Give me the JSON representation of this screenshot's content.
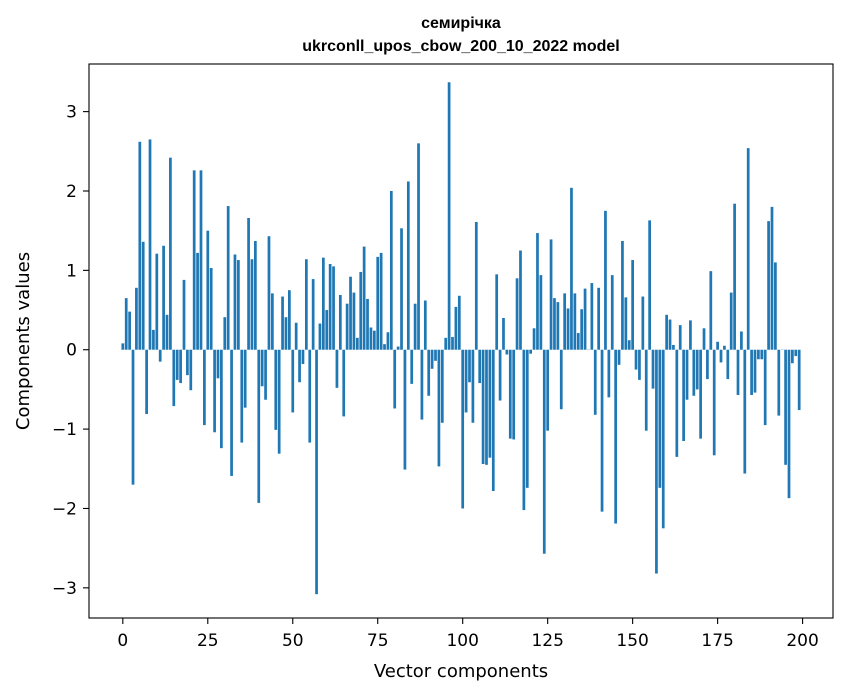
{
  "chart_data": {
    "type": "bar",
    "title": "семирічка",
    "subtitle": "ukrconll_upos_cbow_200_10_2022 model",
    "xlabel": "Vector components",
    "ylabel": "Components values",
    "xlim": [
      -9.95,
      208.95
    ],
    "ylim": [
      -3.38,
      3.6
    ],
    "xticks": [
      0,
      25,
      50,
      75,
      100,
      125,
      150,
      175,
      200
    ],
    "yticks": [
      -3,
      -2,
      -1,
      0,
      1,
      2,
      3
    ],
    "xtick_labels": [
      "0",
      "25",
      "50",
      "75",
      "100",
      "125",
      "150",
      "175",
      "200"
    ],
    "ytick_labels": [
      "−3",
      "−2",
      "−1",
      "0",
      "1",
      "2",
      "3"
    ],
    "grid": false,
    "bar_color": "#1f77b4",
    "x": [
      0,
      1,
      2,
      3,
      4,
      5,
      6,
      7,
      8,
      9,
      10,
      11,
      12,
      13,
      14,
      15,
      16,
      17,
      18,
      19,
      20,
      21,
      22,
      23,
      24,
      25,
      26,
      27,
      28,
      29,
      30,
      31,
      32,
      33,
      34,
      35,
      36,
      37,
      38,
      39,
      40,
      41,
      42,
      43,
      44,
      45,
      46,
      47,
      48,
      49,
      50,
      51,
      52,
      53,
      54,
      55,
      56,
      57,
      58,
      59,
      60,
      61,
      62,
      63,
      64,
      65,
      66,
      67,
      68,
      69,
      70,
      71,
      72,
      73,
      74,
      75,
      76,
      77,
      78,
      79,
      80,
      81,
      82,
      83,
      84,
      85,
      86,
      87,
      88,
      89,
      90,
      91,
      92,
      93,
      94,
      95,
      96,
      97,
      98,
      99,
      100,
      101,
      102,
      103,
      104,
      105,
      106,
      107,
      108,
      109,
      110,
      111,
      112,
      113,
      114,
      115,
      116,
      117,
      118,
      119,
      120,
      121,
      122,
      123,
      124,
      125,
      126,
      127,
      128,
      129,
      130,
      131,
      132,
      133,
      134,
      135,
      136,
      137,
      138,
      139,
      140,
      141,
      142,
      143,
      144,
      145,
      146,
      147,
      148,
      149,
      150,
      151,
      152,
      153,
      154,
      155,
      156,
      157,
      158,
      159,
      160,
      161,
      162,
      163,
      164,
      165,
      166,
      167,
      168,
      169,
      170,
      171,
      172,
      173,
      174,
      175,
      176,
      177,
      178,
      179,
      180,
      181,
      182,
      183,
      184,
      185,
      186,
      187,
      188,
      189,
      190,
      191,
      192,
      193,
      194,
      195,
      196,
      197,
      198,
      199
    ],
    "values": [
      0.08,
      0.65,
      0.48,
      -1.7,
      0.78,
      2.62,
      1.36,
      -0.81,
      2.65,
      0.25,
      1.21,
      -0.15,
      1.31,
      0.44,
      2.42,
      -0.71,
      -0.38,
      -0.42,
      0.88,
      -0.32,
      -0.51,
      2.26,
      1.22,
      2.26,
      -0.95,
      1.5,
      1.03,
      -1.04,
      -0.36,
      -1.24,
      0.41,
      1.81,
      -1.59,
      1.2,
      1.13,
      -1.17,
      -0.73,
      1.66,
      1.14,
      1.37,
      -1.93,
      -0.46,
      -0.63,
      1.43,
      0.71,
      -1.01,
      -1.31,
      0.67,
      0.41,
      0.75,
      -0.79,
      0.34,
      -0.41,
      -0.18,
      1.14,
      -1.17,
      0.89,
      -3.08,
      0.33,
      1.16,
      0.5,
      1.08,
      1.05,
      -0.48,
      0.69,
      -0.84,
      0.58,
      0.92,
      0.72,
      0.15,
      0.98,
      1.3,
      0.64,
      0.28,
      0.24,
      1.17,
      1.22,
      0.07,
      0.22,
      2.0,
      -0.74,
      0.04,
      1.53,
      -1.51,
      2.12,
      -0.43,
      0.58,
      2.6,
      -0.88,
      0.62,
      -0.58,
      -0.24,
      -0.14,
      -1.47,
      -0.92,
      0.15,
      3.37,
      0.16,
      0.54,
      0.68,
      -2.0,
      -0.79,
      -0.41,
      -0.92,
      1.61,
      -0.42,
      -1.44,
      -1.45,
      -1.36,
      -1.78,
      0.95,
      -0.64,
      0.4,
      -0.06,
      -1.12,
      -1.13,
      0.9,
      1.25,
      -2.02,
      -1.74,
      -0.05,
      0.27,
      1.47,
      0.94,
      -2.57,
      -1.02,
      1.39,
      0.65,
      0.6,
      -0.75,
      0.71,
      0.52,
      2.04,
      0.71,
      0.21,
      0.51,
      0.77,
      0.0,
      0.84,
      -0.82,
      0.78,
      -2.04,
      1.75,
      -0.6,
      0.94,
      -2.19,
      -0.19,
      1.37,
      0.66,
      0.12,
      1.13,
      -0.25,
      -0.38,
      0.67,
      -1.02,
      1.63,
      -0.49,
      -2.82,
      -1.74,
      -2.25,
      0.44,
      0.38,
      0.06,
      -1.35,
      0.31,
      -1.15,
      -0.63,
      0.37,
      -0.58,
      -0.5,
      -1.12,
      0.27,
      -0.37,
      0.99,
      -1.33,
      0.1,
      -0.16,
      0.05,
      -0.37,
      0.72,
      1.84,
      -0.57,
      0.23,
      -1.56,
      2.54,
      -0.57,
      -0.54,
      -0.12,
      -0.12,
      -0.95,
      1.62,
      1.8,
      1.1,
      -0.83,
      0.0,
      -1.45,
      -1.87,
      -0.17,
      -0.08,
      -0.76
    ]
  }
}
